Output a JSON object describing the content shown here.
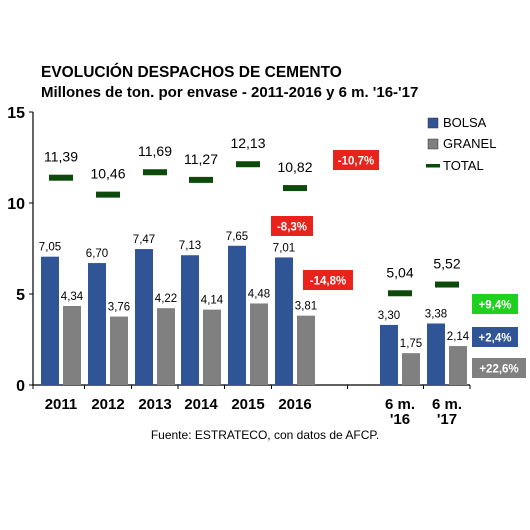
{
  "chart_data": {
    "type": "bar",
    "title": "EVOLUCIÓN DESPACHOS DE CEMENTO",
    "subtitle": "Millones de ton. por envase - 2011-2016 y 6 m. '16-'17",
    "source": "Fuente: ESTRATECO, con datos de AFCP.",
    "categories": [
      "2011",
      "2012",
      "2013",
      "2014",
      "2015",
      "2016",
      "6 m. '16",
      "6 m. '17"
    ],
    "category_lines": [
      [
        "2011"
      ],
      [
        "2012"
      ],
      [
        "2013"
      ],
      [
        "2014"
      ],
      [
        "2015"
      ],
      [
        "2016"
      ],
      [
        "6 m.",
        "'16"
      ],
      [
        "6 m.",
        "'17"
      ]
    ],
    "ylim": [
      0,
      15
    ],
    "yticks": [
      0,
      5,
      10,
      15
    ],
    "legend_position": "top-right",
    "grid": false,
    "series": [
      {
        "name": "BOLSA",
        "kind": "bar",
        "color": "#2F5597",
        "values": [
          7.05,
          6.7,
          7.47,
          7.13,
          7.65,
          7.01,
          3.3,
          3.38
        ],
        "labels": [
          "7,05",
          "6,70",
          "7,47",
          "7,13",
          "7,65",
          "7,01",
          "3,30",
          "3,38"
        ]
      },
      {
        "name": "GRANEL",
        "kind": "bar",
        "color": "#808080",
        "values": [
          4.34,
          3.76,
          4.22,
          4.14,
          4.48,
          3.81,
          1.75,
          2.14
        ],
        "labels": [
          "4,34",
          "3,76",
          "4,22",
          "4,14",
          "4,48",
          "3,81",
          "1,75",
          "2,14"
        ]
      },
      {
        "name": "TOTAL",
        "kind": "marker",
        "color": "#0B4A0B",
        "values": [
          11.39,
          10.46,
          11.69,
          11.27,
          12.13,
          10.82,
          5.04,
          5.52
        ],
        "labels": [
          "11,39",
          "10,46",
          "11,69",
          "11,27",
          "12,13",
          "10,82",
          "5,04",
          "5,52"
        ]
      }
    ],
    "annotations": [
      {
        "text": "-10,7%",
        "category": "2016",
        "series": "TOTAL",
        "color": "#E8231B"
      },
      {
        "text": "-8,3%",
        "category": "2016",
        "series": "BOLSA",
        "color": "#E8231B"
      },
      {
        "text": "-14,8%",
        "category": "2016",
        "series": "GRANEL",
        "color": "#E8231B"
      },
      {
        "text": "+9,4%",
        "category": "6 m. '17",
        "series": "TOTAL",
        "color": "#1FD11F"
      },
      {
        "text": "+2,4%",
        "category": "6 m. '17",
        "series": "BOLSA",
        "color": "#2F5597"
      },
      {
        "text": "+22,6%",
        "category": "6 m. '17",
        "series": "GRANEL",
        "color": "#808080"
      }
    ]
  }
}
